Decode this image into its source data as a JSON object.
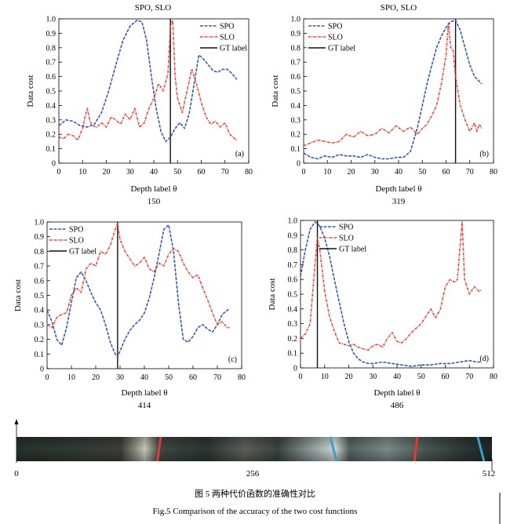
{
  "colors": {
    "spo": "#3a5aa8",
    "slo": "#e03a30",
    "gt": "#111111",
    "red_marker": "#e03a30",
    "blue_marker": "#3aa0c8"
  },
  "chart_data": [
    {
      "type": "line",
      "title": "SPO, SLO",
      "panel_label": "(a)",
      "caption": "150",
      "xlabel": "Depth label θ",
      "ylabel": "Data cost",
      "xlim": [
        0,
        80
      ],
      "ylim": [
        0,
        1
      ],
      "xticks": [
        "0",
        "10",
        "20",
        "30",
        "40",
        "50",
        "60",
        "70",
        "80"
      ],
      "yticks": [
        "0",
        "0.1",
        "0.2",
        "0.3",
        "0.4",
        "0.5",
        "0.6",
        "0.7",
        "0.8",
        "0.9",
        "1.0"
      ],
      "legend": [
        "SPO",
        "SLO",
        "GT label"
      ],
      "gt_label": 47,
      "series": [
        {
          "name": "SPO",
          "x": [
            0,
            3,
            6,
            9,
            12,
            15,
            18,
            21,
            24,
            27,
            30,
            33,
            35,
            37,
            39,
            41,
            43,
            45,
            47,
            49,
            51,
            53,
            55,
            57,
            59,
            61,
            63,
            65,
            67,
            69,
            71,
            73,
            75
          ],
          "values": [
            0.26,
            0.3,
            0.29,
            0.26,
            0.25,
            0.27,
            0.35,
            0.5,
            0.68,
            0.85,
            0.95,
            0.99,
            0.98,
            0.85,
            0.6,
            0.38,
            0.22,
            0.15,
            0.18,
            0.24,
            0.28,
            0.24,
            0.35,
            0.55,
            0.75,
            0.72,
            0.68,
            0.64,
            0.63,
            0.65,
            0.65,
            0.62,
            0.58
          ]
        },
        {
          "name": "SLO",
          "x": [
            0,
            2,
            4,
            6,
            8,
            10,
            11,
            12,
            13,
            14,
            16,
            18,
            20,
            22,
            24,
            26,
            28,
            30,
            32,
            34,
            36,
            38,
            40,
            42,
            44,
            46,
            47,
            48,
            49,
            50,
            52,
            54,
            56,
            58,
            60,
            62,
            64,
            66,
            68,
            70,
            72,
            74,
            75
          ],
          "values": [
            0.18,
            0.17,
            0.2,
            0.19,
            0.16,
            0.24,
            0.32,
            0.38,
            0.3,
            0.26,
            0.25,
            0.28,
            0.25,
            0.32,
            0.3,
            0.27,
            0.34,
            0.3,
            0.38,
            0.25,
            0.28,
            0.38,
            0.45,
            0.55,
            0.5,
            0.62,
            0.95,
            0.99,
            0.6,
            0.45,
            0.35,
            0.5,
            0.65,
            0.55,
            0.42,
            0.32,
            0.27,
            0.29,
            0.25,
            0.28,
            0.2,
            0.17,
            0.16
          ]
        }
      ]
    },
    {
      "type": "line",
      "title": "SPO, SLO",
      "panel_label": "(b)",
      "caption": "319",
      "xlabel": "Depth label θ",
      "ylabel": "Data cost",
      "xlim": [
        0,
        80
      ],
      "ylim": [
        0,
        1
      ],
      "xticks": [
        "0",
        "10",
        "20",
        "30",
        "40",
        "50",
        "60",
        "70",
        "80"
      ],
      "yticks": [
        "0",
        "0.1",
        "0.2",
        "0.3",
        "0.4",
        "0.5",
        "0.6",
        "0.7",
        "0.8",
        "0.9",
        "1.0"
      ],
      "legend": [
        "SPO",
        "SLO",
        "GT label"
      ],
      "gt_label": 64,
      "series": [
        {
          "name": "SPO",
          "x": [
            0,
            3,
            6,
            9,
            12,
            15,
            18,
            21,
            24,
            27,
            30,
            33,
            36,
            39,
            42,
            45,
            48,
            50,
            52,
            54,
            56,
            58,
            60,
            62,
            64,
            66,
            68,
            70,
            72,
            75
          ],
          "values": [
            0.07,
            0.04,
            0.03,
            0.05,
            0.04,
            0.06,
            0.05,
            0.05,
            0.04,
            0.06,
            0.04,
            0.03,
            0.03,
            0.04,
            0.04,
            0.08,
            0.25,
            0.4,
            0.55,
            0.68,
            0.8,
            0.88,
            0.94,
            0.98,
            0.99,
            0.92,
            0.8,
            0.68,
            0.6,
            0.55
          ]
        },
        {
          "name": "SLO",
          "x": [
            0,
            3,
            6,
            9,
            12,
            15,
            18,
            21,
            24,
            27,
            30,
            33,
            36,
            39,
            42,
            45,
            48,
            50,
            52,
            54,
            56,
            58,
            60,
            61,
            62,
            63,
            64,
            65,
            66,
            67,
            68,
            70,
            72,
            73,
            74,
            75
          ],
          "values": [
            0.12,
            0.14,
            0.16,
            0.15,
            0.14,
            0.15,
            0.2,
            0.18,
            0.22,
            0.19,
            0.2,
            0.24,
            0.21,
            0.26,
            0.22,
            0.25,
            0.2,
            0.24,
            0.27,
            0.33,
            0.4,
            0.55,
            0.75,
            0.97,
            0.8,
            0.78,
            0.6,
            0.5,
            0.4,
            0.35,
            0.3,
            0.22,
            0.28,
            0.22,
            0.27,
            0.24
          ]
        }
      ]
    },
    {
      "type": "line",
      "title": "",
      "panel_label": "(c)",
      "caption": "414",
      "xlabel": "Depth label θ",
      "ylabel": "Data cost",
      "xlim": [
        0,
        80
      ],
      "ylim": [
        0,
        1
      ],
      "xticks": [
        "0",
        "10",
        "20",
        "30",
        "40",
        "50",
        "60",
        "70",
        "80"
      ],
      "yticks": [
        "0",
        "0.1",
        "0.2",
        "0.3",
        "0.4",
        "0.5",
        "0.6",
        "0.7",
        "0.8",
        "0.9",
        "1.0"
      ],
      "legend": [
        "SPO",
        "SLO",
        "GT label"
      ],
      "gt_label": 29,
      "series": [
        {
          "name": "SPO",
          "x": [
            0,
            2,
            4,
            6,
            8,
            10,
            12,
            14,
            16,
            18,
            20,
            22,
            24,
            26,
            28,
            29,
            30,
            32,
            34,
            36,
            38,
            40,
            42,
            44,
            46,
            48,
            50,
            52,
            54,
            56,
            58,
            60,
            62,
            64,
            66,
            68,
            70,
            72,
            75
          ],
          "values": [
            0.4,
            0.32,
            0.2,
            0.16,
            0.28,
            0.45,
            0.62,
            0.66,
            0.6,
            0.52,
            0.45,
            0.4,
            0.3,
            0.18,
            0.1,
            0.08,
            0.12,
            0.2,
            0.26,
            0.3,
            0.33,
            0.38,
            0.48,
            0.62,
            0.78,
            0.95,
            0.98,
            0.8,
            0.45,
            0.2,
            0.18,
            0.22,
            0.28,
            0.3,
            0.27,
            0.25,
            0.3,
            0.37,
            0.41
          ]
        },
        {
          "name": "SLO",
          "x": [
            0,
            2,
            4,
            6,
            8,
            10,
            12,
            14,
            16,
            18,
            20,
            22,
            24,
            26,
            28,
            29,
            30,
            32,
            34,
            36,
            38,
            40,
            42,
            44,
            46,
            48,
            50,
            52,
            54,
            56,
            58,
            60,
            62,
            64,
            66,
            68,
            70,
            72,
            74,
            75
          ],
          "values": [
            0.3,
            0.28,
            0.35,
            0.37,
            0.38,
            0.5,
            0.55,
            0.52,
            0.68,
            0.72,
            0.7,
            0.8,
            0.78,
            0.84,
            0.95,
            0.99,
            0.88,
            0.8,
            0.75,
            0.7,
            0.72,
            0.76,
            0.68,
            0.66,
            0.72,
            0.7,
            0.78,
            0.82,
            0.8,
            0.72,
            0.66,
            0.62,
            0.64,
            0.55,
            0.47,
            0.38,
            0.3,
            0.32,
            0.28,
            0.28
          ]
        }
      ]
    },
    {
      "type": "line",
      "title": "",
      "panel_label": "(d)",
      "caption": "486",
      "xlabel": "Depth label θ",
      "ylabel": "Data cost",
      "xlim": [
        0,
        80
      ],
      "ylim": [
        0,
        1
      ],
      "xticks": [
        "0",
        "10",
        "20",
        "30",
        "40",
        "50",
        "60",
        "70",
        "80"
      ],
      "yticks": [
        "0",
        "0.1",
        "0.2",
        "0.3",
        "0.4",
        "0.5",
        "0.6",
        "0.7",
        "0.8",
        "0.9",
        "1.0"
      ],
      "legend": [
        "SPO",
        "SLO",
        "GT label"
      ],
      "gt_label": 7,
      "series": [
        {
          "name": "SPO",
          "x": [
            0,
            2,
            4,
            6,
            7,
            8,
            10,
            12,
            14,
            16,
            18,
            20,
            22,
            24,
            26,
            28,
            30,
            34,
            38,
            42,
            46,
            50,
            54,
            58,
            62,
            66,
            70,
            73,
            75
          ],
          "values": [
            0.62,
            0.8,
            0.94,
            0.99,
            0.98,
            0.96,
            0.88,
            0.76,
            0.6,
            0.45,
            0.3,
            0.18,
            0.1,
            0.06,
            0.04,
            0.03,
            0.03,
            0.04,
            0.03,
            0.02,
            0.01,
            0.02,
            0.02,
            0.03,
            0.03,
            0.04,
            0.05,
            0.04,
            0.04
          ]
        },
        {
          "name": "SLO",
          "x": [
            0,
            2,
            4,
            6,
            7,
            8,
            10,
            12,
            14,
            16,
            18,
            20,
            22,
            24,
            26,
            28,
            30,
            32,
            34,
            36,
            38,
            40,
            42,
            44,
            46,
            48,
            50,
            52,
            54,
            56,
            58,
            60,
            62,
            64,
            65,
            66,
            67,
            68,
            70,
            72,
            74,
            75
          ],
          "values": [
            0.2,
            0.23,
            0.3,
            0.7,
            0.88,
            0.8,
            0.52,
            0.35,
            0.25,
            0.17,
            0.16,
            0.15,
            0.16,
            0.14,
            0.13,
            0.12,
            0.15,
            0.16,
            0.14,
            0.2,
            0.24,
            0.18,
            0.17,
            0.2,
            0.24,
            0.27,
            0.3,
            0.35,
            0.4,
            0.34,
            0.4,
            0.55,
            0.6,
            0.58,
            0.6,
            0.8,
            0.99,
            0.6,
            0.5,
            0.55,
            0.52,
            0.53
          ]
        }
      ]
    }
  ],
  "strip": {
    "tick_labels": [
      "0",
      "256",
      "512"
    ],
    "red_markers": [
      0.3,
      0.84
    ],
    "blue_markers": [
      0.67,
      0.98
    ]
  },
  "caption_cn": "图 5  两种代价函数的准确性对比",
  "caption_en": "Fig.5  Comparison of the accuracy of the two cost functions"
}
